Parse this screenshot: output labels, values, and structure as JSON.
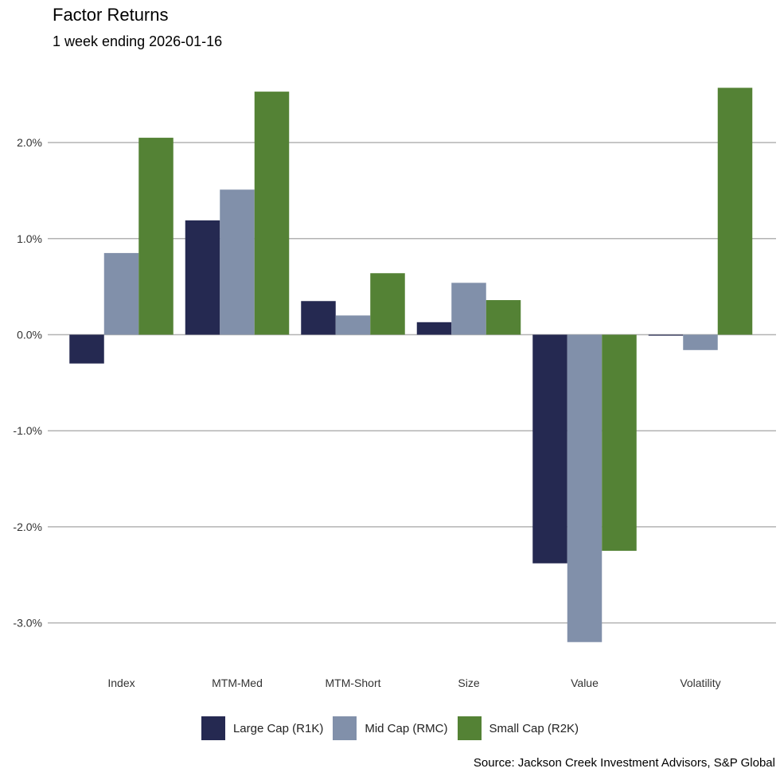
{
  "chart_data": {
    "type": "bar",
    "title": "Factor Returns",
    "subtitle": "1 week ending 2026-01-16",
    "categories": [
      "Index",
      "MTM-Med",
      "MTM-Short",
      "Size",
      "Value",
      "Volatility"
    ],
    "series": [
      {
        "name": "Large Cap (R1K)",
        "color": "#252951",
        "values": [
          -0.3,
          1.19,
          0.35,
          0.13,
          -2.38,
          -0.01
        ]
      },
      {
        "name": "Mid Cap (RMC)",
        "color": "#8190aa",
        "values": [
          0.85,
          1.51,
          0.2,
          0.54,
          -3.2,
          -0.16
        ]
      },
      {
        "name": "Small Cap (R2K)",
        "color": "#548235",
        "values": [
          2.05,
          2.53,
          0.64,
          0.36,
          -2.25,
          2.57
        ]
      }
    ],
    "yticks": [
      2.0,
      1.0,
      0.0,
      -1.0,
      -2.0,
      -3.0
    ],
    "ytick_labels": [
      "2.0%",
      "1.0%",
      "0.0%",
      "-1.0%",
      "-2.0%",
      "-3.0%"
    ],
    "ylim": [
      -3.3,
      2.7
    ],
    "grid": "horizontal",
    "legend": "bottom",
    "source": "Source: Jackson Creek Investment Advisors, S&P Global"
  }
}
